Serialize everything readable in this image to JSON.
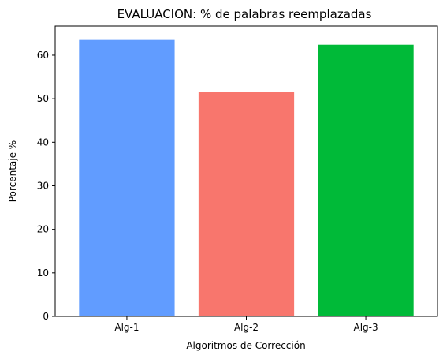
{
  "chart_data": {
    "type": "bar",
    "title": "EVALUACION: % de palabras reemplazadas",
    "xlabel": "Algoritmos de Corrección",
    "ylabel": "Porcentaje %",
    "categories": [
      "Alg-1",
      "Alg-2",
      "Alg-3"
    ],
    "values": [
      63.5,
      51.6,
      62.4
    ],
    "colors": [
      "#619cff",
      "#f8766d",
      "#00ba38"
    ],
    "ylim": [
      0,
      66.7
    ],
    "yticks": [
      0,
      10,
      20,
      30,
      40,
      50,
      60
    ],
    "grid": false,
    "legend": "none"
  }
}
